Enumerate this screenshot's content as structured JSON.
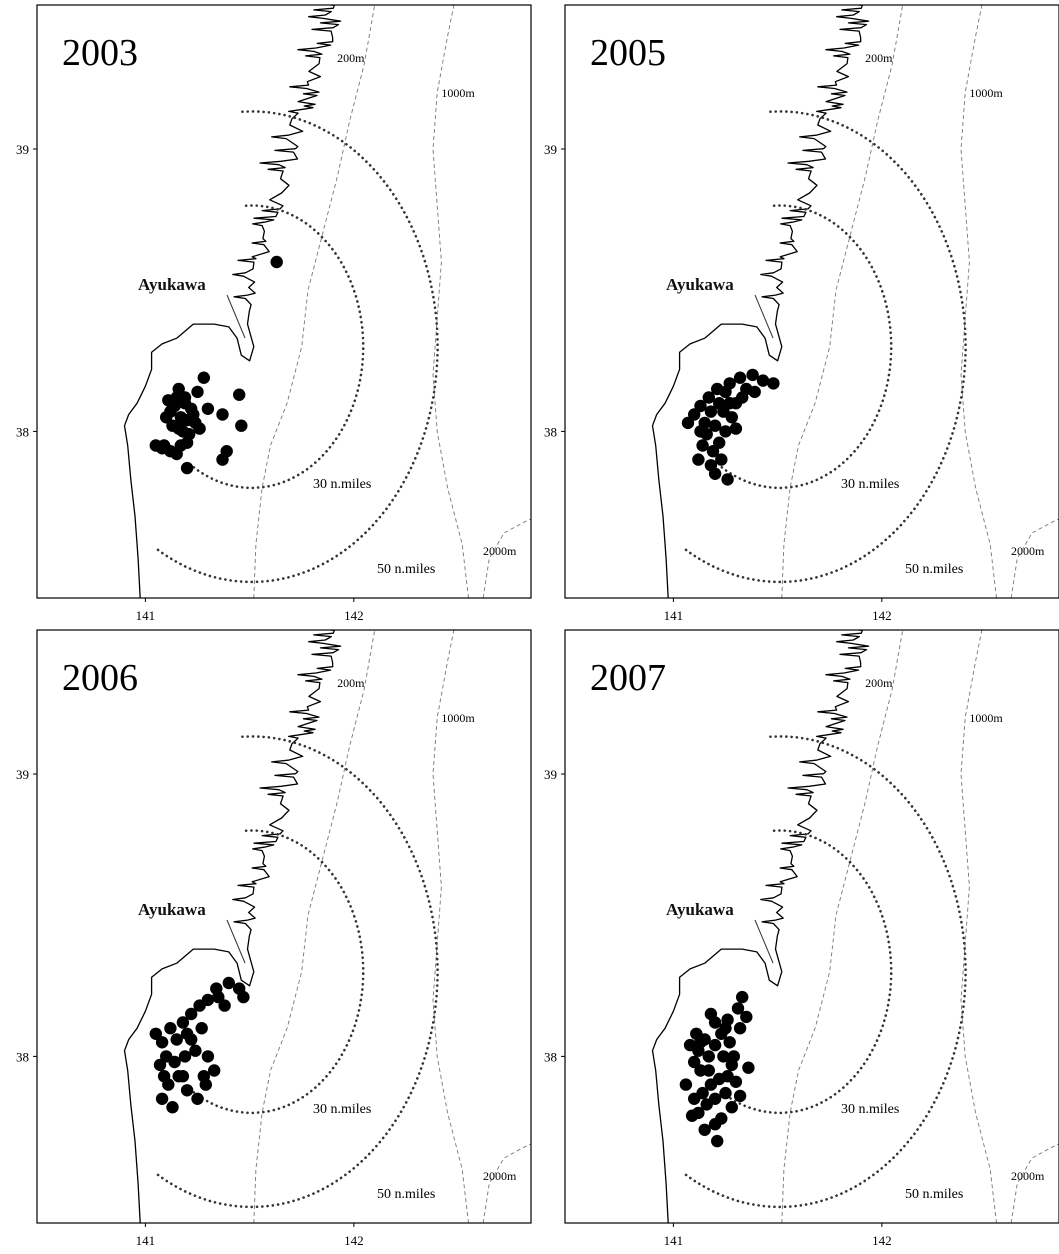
{
  "figure": {
    "x_ticks": [
      "141",
      "142"
    ],
    "y_ticks": [
      "39",
      "38"
    ],
    "port": "Ayukawa",
    "range_labels": [
      "30 n.miles",
      "50 n.miles"
    ],
    "depth_labels": [
      "200m",
      "1000m",
      "2000m"
    ],
    "colors": {
      "sighting": "#000000",
      "range_circle": "#333333",
      "isobath": "#777777",
      "coast": "#000000"
    }
  },
  "chart_data": [
    {
      "type": "scatter",
      "title": "2003",
      "xlim": [
        140.48,
        142.85
      ],
      "ylim": [
        37.41,
        39.51
      ],
      "x_ticks": [
        141,
        142
      ],
      "y_ticks": [
        38,
        39
      ],
      "series": [
        {
          "points": [
            [
              141.12,
              38.07
            ],
            [
              141.15,
              38.12
            ],
            [
              141.17,
              38.05
            ],
            [
              141.13,
              38.02
            ],
            [
              141.19,
              38.1
            ],
            [
              141.16,
              38.15
            ],
            [
              141.2,
              38.04
            ],
            [
              141.18,
              38.0
            ],
            [
              141.14,
              38.09
            ],
            [
              141.22,
              38.08
            ],
            [
              141.1,
              38.05
            ],
            [
              141.24,
              38.03
            ],
            [
              141.21,
              37.99
            ],
            [
              141.26,
              38.01
            ],
            [
              141.28,
              38.19
            ],
            [
              141.25,
              38.14
            ],
            [
              141.17,
              37.95
            ],
            [
              141.05,
              37.95
            ],
            [
              141.08,
              37.94
            ],
            [
              141.12,
              37.93
            ],
            [
              141.15,
              37.92
            ],
            [
              141.2,
              37.96
            ],
            [
              141.3,
              38.08
            ],
            [
              141.37,
              38.06
            ],
            [
              141.45,
              38.13
            ],
            [
              141.46,
              38.02
            ],
            [
              141.39,
              37.93
            ],
            [
              141.37,
              37.9
            ],
            [
              141.2,
              37.87
            ],
            [
              141.63,
              38.6
            ],
            [
              141.19,
              38.12
            ],
            [
              141.23,
              38.06
            ],
            [
              141.11,
              38.11
            ],
            [
              141.16,
              38.01
            ],
            [
              141.09,
              37.95
            ]
          ]
        }
      ]
    },
    {
      "type": "scatter",
      "title": "2005",
      "xlim": [
        140.48,
        142.85
      ],
      "ylim": [
        37.41,
        39.51
      ],
      "x_ticks": [
        141,
        142
      ],
      "y_ticks": [
        38,
        39
      ],
      "series": [
        {
          "points": [
            [
              141.1,
              38.06
            ],
            [
              141.13,
              38.09
            ],
            [
              141.15,
              38.03
            ],
            [
              141.18,
              38.07
            ],
            [
              141.16,
              37.99
            ],
            [
              141.2,
              38.02
            ],
            [
              141.22,
              38.1
            ],
            [
              141.25,
              38.14
            ],
            [
              141.27,
              38.17
            ],
            [
              141.32,
              38.19
            ],
            [
              141.35,
              38.15
            ],
            [
              141.38,
              38.2
            ],
            [
              141.43,
              38.18
            ],
            [
              141.48,
              38.17
            ],
            [
              141.3,
              38.1
            ],
            [
              141.33,
              38.12
            ],
            [
              141.28,
              38.05
            ],
            [
              141.25,
              38.0
            ],
            [
              141.22,
              37.96
            ],
            [
              141.19,
              37.93
            ],
            [
              141.14,
              37.95
            ],
            [
              141.12,
              37.9
            ],
            [
              141.18,
              37.88
            ],
            [
              141.23,
              37.9
            ],
            [
              141.2,
              37.85
            ],
            [
              141.26,
              37.83
            ],
            [
              141.07,
              38.03
            ],
            [
              141.24,
              38.07
            ],
            [
              141.3,
              38.01
            ],
            [
              141.17,
              38.12
            ],
            [
              141.21,
              38.15
            ],
            [
              141.27,
              38.1
            ],
            [
              141.13,
              38.0
            ],
            [
              141.39,
              38.14
            ]
          ]
        }
      ]
    },
    {
      "type": "scatter",
      "title": "2006",
      "xlim": [
        140.48,
        142.85
      ],
      "ylim": [
        37.41,
        39.51
      ],
      "x_ticks": [
        141,
        142
      ],
      "y_ticks": [
        38,
        39
      ],
      "series": [
        {
          "points": [
            [
              141.05,
              38.08
            ],
            [
              141.08,
              38.05
            ],
            [
              141.1,
              38.0
            ],
            [
              141.07,
              37.97
            ],
            [
              141.12,
              38.1
            ],
            [
              141.15,
              38.06
            ],
            [
              141.18,
              38.12
            ],
            [
              141.22,
              38.15
            ],
            [
              141.26,
              38.18
            ],
            [
              141.3,
              38.2
            ],
            [
              141.34,
              38.24
            ],
            [
              141.4,
              38.26
            ],
            [
              141.45,
              38.24
            ],
            [
              141.47,
              38.21
            ],
            [
              141.38,
              38.18
            ],
            [
              141.27,
              38.1
            ],
            [
              141.22,
              38.06
            ],
            [
              141.19,
              38.0
            ],
            [
              141.14,
              37.98
            ],
            [
              141.16,
              37.93
            ],
            [
              141.11,
              37.9
            ],
            [
              141.08,
              37.85
            ],
            [
              141.13,
              37.82
            ],
            [
              141.2,
              37.88
            ],
            [
              141.25,
              37.85
            ],
            [
              141.28,
              37.93
            ],
            [
              141.33,
              37.95
            ],
            [
              141.3,
              38.0
            ],
            [
              141.24,
              38.02
            ],
            [
              141.18,
              37.93
            ],
            [
              141.09,
              37.93
            ],
            [
              141.35,
              38.21
            ],
            [
              141.2,
              38.08
            ],
            [
              141.29,
              37.9
            ]
          ]
        }
      ]
    },
    {
      "type": "scatter",
      "title": "2007",
      "xlim": [
        140.48,
        142.85
      ],
      "ylim": [
        37.41,
        39.51
      ],
      "x_ticks": [
        141,
        142
      ],
      "y_ticks": [
        38,
        39
      ],
      "series": [
        {
          "points": [
            [
              141.08,
              38.04
            ],
            [
              141.12,
              38.02
            ],
            [
              141.15,
              38.06
            ],
            [
              141.1,
              37.98
            ],
            [
              141.13,
              37.95
            ],
            [
              141.17,
              38.0
            ],
            [
              141.2,
              38.04
            ],
            [
              141.23,
              38.08
            ],
            [
              141.2,
              38.12
            ],
            [
              141.18,
              38.15
            ],
            [
              141.25,
              38.1
            ],
            [
              141.27,
              38.05
            ],
            [
              141.24,
              38.0
            ],
            [
              141.28,
              37.97
            ],
            [
              141.22,
              37.92
            ],
            [
              141.18,
              37.9
            ],
            [
              141.14,
              37.87
            ],
            [
              141.1,
              37.85
            ],
            [
              141.12,
              37.8
            ],
            [
              141.16,
              37.83
            ],
            [
              141.2,
              37.85
            ],
            [
              141.25,
              37.87
            ],
            [
              141.3,
              37.91
            ],
            [
              141.32,
              37.86
            ],
            [
              141.28,
              37.82
            ],
            [
              141.23,
              37.78
            ],
            [
              141.2,
              37.76
            ],
            [
              141.15,
              37.74
            ],
            [
              141.09,
              37.79
            ],
            [
              141.31,
              38.17
            ],
            [
              141.33,
              38.21
            ],
            [
              141.35,
              38.14
            ],
            [
              141.32,
              38.1
            ],
            [
              141.26,
              38.13
            ],
            [
              141.06,
              37.9
            ],
            [
              141.11,
              38.08
            ],
            [
              141.21,
              37.7
            ],
            [
              141.36,
              37.96
            ],
            [
              141.29,
              38.0
            ],
            [
              141.17,
              37.95
            ],
            [
              141.13,
              38.05
            ],
            [
              141.26,
              37.93
            ]
          ]
        }
      ]
    }
  ]
}
